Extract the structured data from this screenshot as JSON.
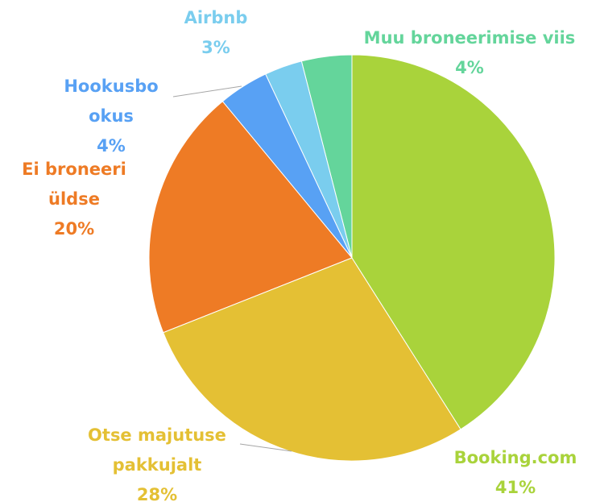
{
  "chart_data": {
    "type": "pie",
    "categories": [
      "Booking.com",
      "Otse majutuse pakkujalt",
      "Ei broneeri üldse",
      "Hookusbookus",
      "Airbnb",
      "Muu broneerimise viis"
    ],
    "values": [
      41,
      28,
      20,
      4,
      3,
      4
    ],
    "value_labels": [
      "41%",
      "28%",
      "20%",
      "4%",
      "3%",
      "4%"
    ],
    "colors": [
      "#a9d33b",
      "#e4c034",
      "#ee7b25",
      "#58a1f4",
      "#7acdee",
      "#64d59b"
    ]
  }
}
